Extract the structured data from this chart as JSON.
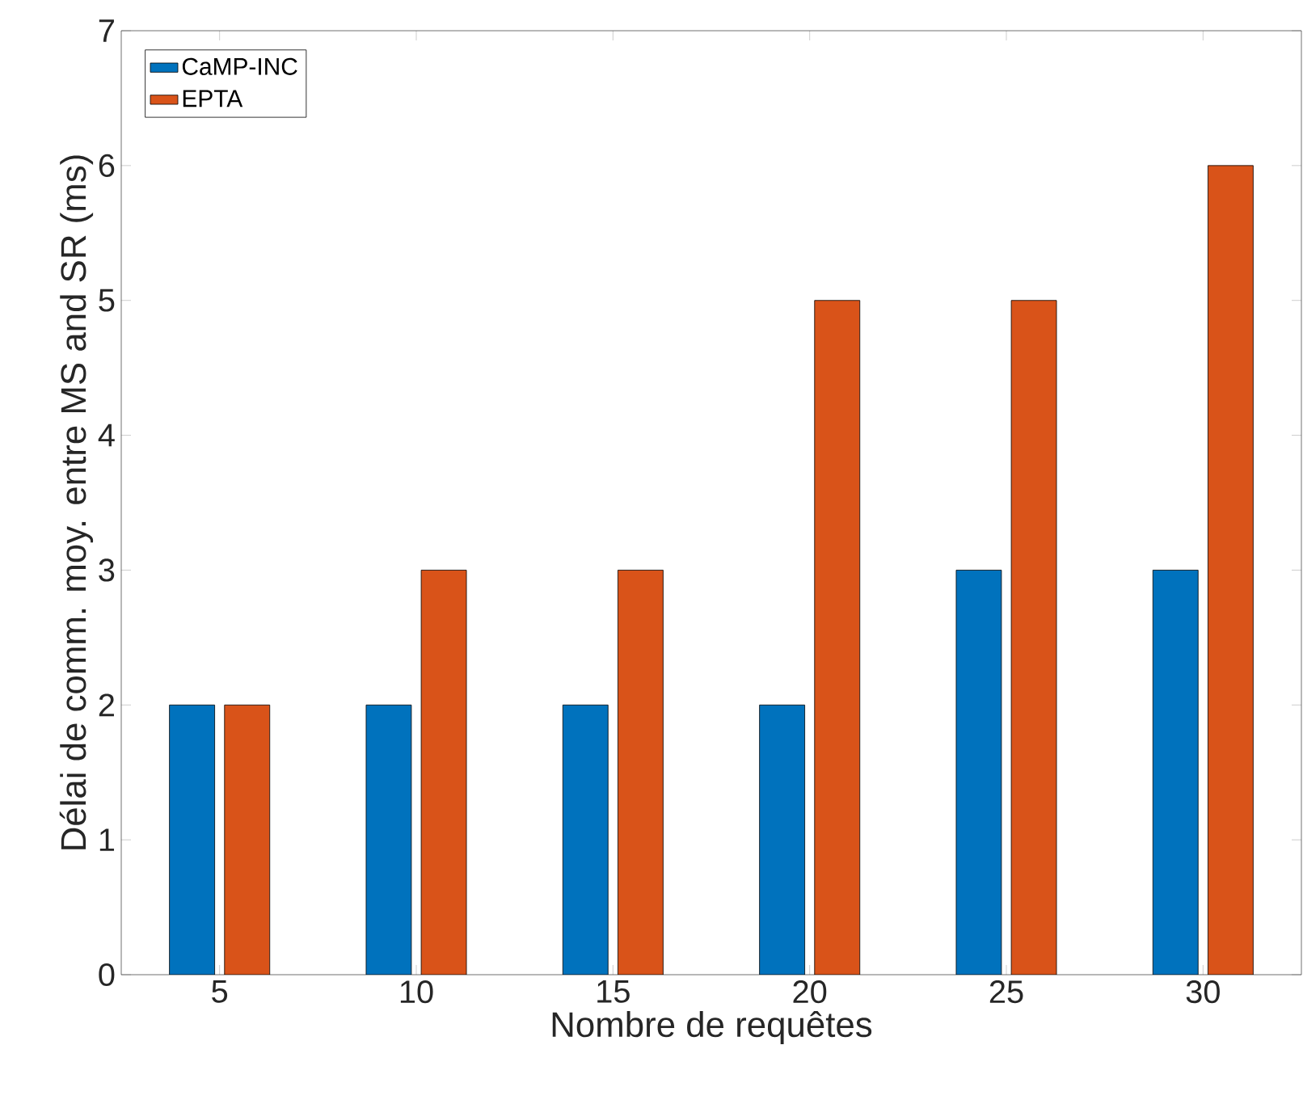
{
  "chart_data": {
    "type": "bar",
    "xlabel": "Nombre de requêtes",
    "ylabel": "Délai de comm. moy. entre MS and SR (ms)",
    "categories": [
      "5",
      "10",
      "15",
      "20",
      "25",
      "30"
    ],
    "series": [
      {
        "name": "CaMP-INC",
        "color": "#0072bd",
        "values": [
          2,
          2,
          2,
          2,
          3,
          3
        ]
      },
      {
        "name": "EPTA",
        "color": "#d95319",
        "values": [
          2,
          3,
          3,
          5,
          5,
          6
        ]
      }
    ],
    "ylim": [
      0,
      7
    ],
    "yticks": [
      0,
      1,
      2,
      3,
      4,
      5,
      6,
      7
    ],
    "grid": false,
    "legend": "top left"
  }
}
